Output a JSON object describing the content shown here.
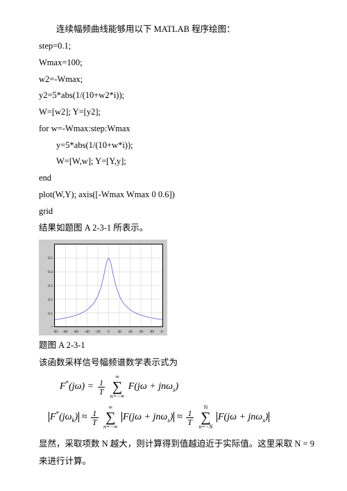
{
  "intro": "连续幅频曲线能够用以下 MATLAB 程序绘图：",
  "code": {
    "l1": "step=0.1;",
    "l2": "Wmax=100;",
    "l3": "w2=-Wmax;",
    "l4": "y2=5*abs(1/(10+w2*i));",
    "l5": "W=[w2]; Y=[y2];",
    "l6": "for w=-Wmax:step:Wmax",
    "l7": "y=5*abs(1/(10+w*i));",
    "l8": "W=[W,w]; Y=[Y,y];",
    "l9": "end",
    "l10": "plot(W,Y); axis([-Wmax Wmax 0 0.6])",
    "l11": "grid"
  },
  "result_line": "结果如题图 A 2-3-1 所表示。",
  "chart": {
    "background": "#cccccc",
    "plot_bg": "#ffffff",
    "axis_color": "#000000",
    "grid_color": "#c8c8c8",
    "line_color": "#7070d0",
    "x_ticks": [
      "-100",
      "-80",
      "-60",
      "-40",
      "-20",
      "0",
      "20",
      "40",
      "60",
      "80",
      "100"
    ],
    "y_ticks": [
      "0",
      "0.1",
      "0.2",
      "0.3",
      "0.4",
      "0.5"
    ],
    "xlim": [
      -100,
      100
    ],
    "ylim": [
      0,
      0.6
    ],
    "curve": [
      [
        -100,
        0.0497
      ],
      [
        -90,
        0.0552
      ],
      [
        -80,
        0.062
      ],
      [
        -70,
        0.0707
      ],
      [
        -60,
        0.0822
      ],
      [
        -50,
        0.0981
      ],
      [
        -40,
        0.1213
      ],
      [
        -30,
        0.1581
      ],
      [
        -25,
        0.1857
      ],
      [
        -20,
        0.2236
      ],
      [
        -15,
        0.2774
      ],
      [
        -12,
        0.3203
      ],
      [
        -10,
        0.3536
      ],
      [
        -8,
        0.3904
      ],
      [
        -6,
        0.4288
      ],
      [
        -4,
        0.4642
      ],
      [
        -2,
        0.4903
      ],
      [
        0,
        0.5
      ],
      [
        2,
        0.4903
      ],
      [
        4,
        0.4642
      ],
      [
        6,
        0.4288
      ],
      [
        8,
        0.3904
      ],
      [
        10,
        0.3536
      ],
      [
        12,
        0.3203
      ],
      [
        15,
        0.2774
      ],
      [
        20,
        0.2236
      ],
      [
        25,
        0.1857
      ],
      [
        30,
        0.1581
      ],
      [
        40,
        0.1213
      ],
      [
        50,
        0.0981
      ],
      [
        60,
        0.0822
      ],
      [
        70,
        0.0707
      ],
      [
        80,
        0.062
      ],
      [
        90,
        0.0552
      ],
      [
        100,
        0.0497
      ]
    ],
    "tick_font_size": 5.5,
    "line_width": 0.9
  },
  "fig_caption": "题图 A 2-3-1",
  "after_fig": "该函数采样信号幅频谱数学表示式为",
  "conclusion": "显然，采取项数 N 越大，则计算得到值越迫近于实际值。这里采取 N = 9 来进行计算。",
  "formula1": {
    "lhs": "F*(jω) = ",
    "frac_num": "1",
    "frac_den": "T",
    "sum_top": "∞",
    "sum_bot": "n=−∞",
    "rhs": "F(jω + jnωs)"
  },
  "formula2": {
    "lhs": "F*(jωk)",
    "approx": " ≈ ",
    "frac_num": "1",
    "frac_den": "T",
    "sum1_top": "∞",
    "sum1_bot": "n=−∞",
    "mid": "F(jω + jnωs)",
    "sum2_top": "N",
    "sum2_bot": "n=−N",
    "rhs": "F(jω + jnωs)"
  }
}
